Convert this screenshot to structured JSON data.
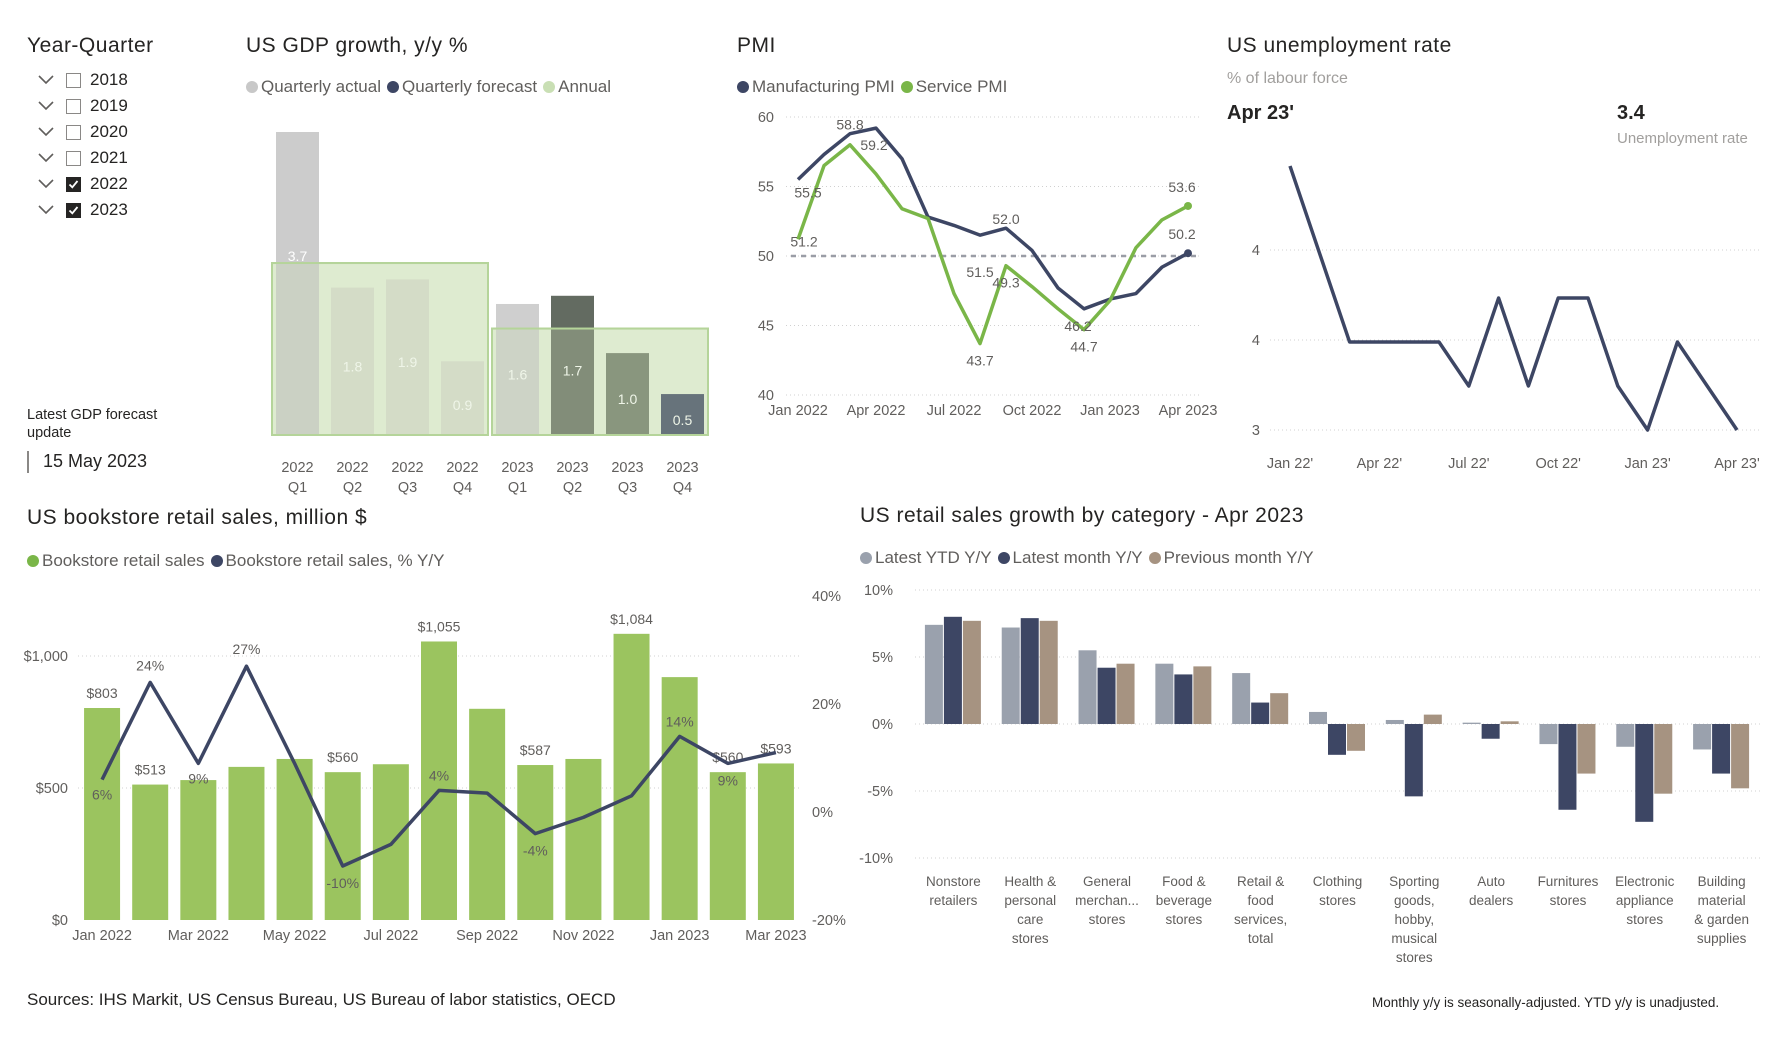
{
  "slicer": {
    "title": "Year-Quarter",
    "items": [
      {
        "label": "2018",
        "checked": false
      },
      {
        "label": "2019",
        "checked": false
      },
      {
        "label": "2020",
        "checked": false
      },
      {
        "label": "2021",
        "checked": false
      },
      {
        "label": "2022",
        "checked": true
      },
      {
        "label": "2023",
        "checked": true
      }
    ],
    "forecast_label": "Latest GDP forecast update",
    "forecast_date": "15 May 2023"
  },
  "gdp": {
    "title": "US GDP growth, y/y %",
    "legend": [
      "Quarterly actual",
      "Quarterly forecast",
      "Annual"
    ],
    "colors": {
      "actual": "#c8c8c8",
      "forecast": "#3d4664",
      "annual": "#c9dfb4"
    },
    "chart_data": {
      "type": "bar",
      "categories": [
        [
          "2022",
          "Q1"
        ],
        [
          "2022",
          "Q2"
        ],
        [
          "2022",
          "Q3"
        ],
        [
          "2022",
          "Q4"
        ],
        [
          "2023",
          "Q1"
        ],
        [
          "2023",
          "Q2"
        ],
        [
          "2023",
          "Q3"
        ],
        [
          "2023",
          "Q4"
        ]
      ],
      "series": [
        {
          "name": "Quarterly actual",
          "values": [
            3.7,
            1.8,
            1.9,
            0.9,
            1.6,
            null,
            null,
            null
          ]
        },
        {
          "name": "Quarterly forecast",
          "values": [
            null,
            null,
            null,
            null,
            null,
            1.7,
            1.0,
            0.5
          ]
        },
        {
          "name": "Annual",
          "values": [
            2.1,
            2.1,
            2.1,
            2.1,
            1.3,
            1.3,
            1.3,
            1.3
          ]
        }
      ],
      "ylim": [
        0,
        4
      ]
    }
  },
  "pmi": {
    "title": "PMI",
    "legend": [
      "Manufacturing PMI",
      "Service PMI"
    ],
    "colors": {
      "manufacturing": "#3d4664",
      "service": "#7ab648"
    },
    "chart_data": {
      "type": "line",
      "x_ticks": [
        "Jan 2022",
        "Apr 2022",
        "Jul 2022",
        "Oct 2022",
        "Jan 2023",
        "Apr 2023"
      ],
      "y_ticks": [
        40,
        45,
        50,
        55,
        60
      ],
      "ylim": [
        40,
        60
      ],
      "reference_line": 50,
      "series": [
        {
          "name": "Manufacturing PMI",
          "values": [
            55.5,
            57.3,
            58.8,
            59.2,
            57.0,
            52.8,
            52.2,
            51.5,
            52.0,
            50.4,
            47.7,
            46.2,
            46.9,
            47.3,
            49.2,
            50.2
          ]
        },
        {
          "name": "Service PMI",
          "values": [
            51.2,
            56.5,
            58.0,
            55.9,
            53.4,
            52.7,
            47.3,
            43.7,
            49.3,
            47.8,
            46.2,
            44.7,
            46.8,
            50.6,
            52.6,
            53.6
          ]
        }
      ],
      "data_labels": [
        "55.5",
        "58.8",
        "59.2",
        "52.0",
        "51.5",
        "46.2",
        "50.2",
        "51.2",
        "43.7",
        "49.3",
        "44.7",
        "53.6"
      ]
    }
  },
  "unemp": {
    "title": "US unemployment rate",
    "subtitle": "% of labour force",
    "period": "Apr 23'",
    "kpi_value": "3.4",
    "kpi_label": "Unemployment rate",
    "colors": {
      "line": "#3d4664"
    },
    "chart_data": {
      "type": "line",
      "x_ticks": [
        "Jan 22'",
        "Apr 22'",
        "Jul 22'",
        "Oct 22'",
        "Jan 23'",
        "Apr 23'"
      ],
      "y_ticks": [
        "4",
        "4",
        "3"
      ],
      "ylim": [
        3.4,
        4.0
      ],
      "values": [
        4.0,
        3.8,
        3.6,
        3.6,
        3.6,
        3.6,
        3.5,
        3.7,
        3.5,
        3.7,
        3.7,
        3.5,
        3.4,
        3.6,
        3.5,
        3.4
      ]
    }
  },
  "bookstore": {
    "title": "US bookstore retail sales, million $",
    "legend": [
      "Bookstore retail sales",
      "Bookstore retail sales, % Y/Y"
    ],
    "colors": {
      "bars": "#9bc45f",
      "line": "#3d4664"
    },
    "chart_data": {
      "type": "bar",
      "x_ticks": [
        "Jan 2022",
        "Mar 2022",
        "May 2022",
        "Jul 2022",
        "Sep 2022",
        "Nov 2022",
        "Jan 2023",
        "Mar 2023"
      ],
      "y_ticks": [
        "$0",
        "$500",
        "$1,000"
      ],
      "y2_ticks": [
        "-20%",
        "0%",
        "20%",
        "40%"
      ],
      "ylim": [
        0,
        1200
      ],
      "y2lim": [
        -20,
        40
      ],
      "series": [
        {
          "name": "Bookstore retail sales",
          "values": [
            803,
            513,
            530,
            580,
            610,
            560,
            590,
            1055,
            800,
            587,
            610,
            1084,
            920,
            560,
            593
          ]
        },
        {
          "name": "Bookstore retail sales, % Y/Y",
          "values": [
            6,
            24,
            9,
            27,
            9,
            -10,
            -6,
            4,
            3.5,
            -4,
            -1,
            3,
            14,
            9,
            11
          ]
        }
      ],
      "bar_labels": [
        "$803",
        "$513",
        "$560",
        "$1,055",
        "$587",
        "$1,084",
        "$560",
        "$593"
      ],
      "line_labels": [
        "6%",
        "24%",
        "9%",
        "27%",
        "-10%",
        "4%",
        "-4%",
        "14%",
        "9%"
      ]
    }
  },
  "retail": {
    "title": "US retail sales growth by category - Apr 2023",
    "legend": [
      "Latest YTD Y/Y",
      "Latest month Y/Y",
      "Previous month Y/Y"
    ],
    "colors": {
      "ytd": "#9aa1ad",
      "month": "#3d4664",
      "prev": "#a69381"
    },
    "chart_data": {
      "type": "bar",
      "categories": [
        [
          "Nonstore",
          "retailers"
        ],
        [
          "Health &",
          "personal",
          "care",
          "stores"
        ],
        [
          "General",
          "merchan...",
          "stores"
        ],
        [
          "Food &",
          "beverage",
          "stores"
        ],
        [
          "Retail &",
          "food",
          "services,",
          "total"
        ],
        [
          "Clothing",
          "stores"
        ],
        [
          "Sporting",
          "goods,",
          "hobby,",
          "musical",
          "stores"
        ],
        [
          "Auto",
          "dealers"
        ],
        [
          "Furnitures",
          "stores"
        ],
        [
          "Electronic",
          "appliance",
          "stores"
        ],
        [
          "Building",
          "material",
          "& garden",
          "supplies"
        ]
      ],
      "y_ticks": [
        "-10%",
        "-5%",
        "0%",
        "5%",
        "10%"
      ],
      "ylim": [
        -10,
        10
      ],
      "series": [
        {
          "name": "Latest YTD Y/Y",
          "values": [
            7.4,
            7.2,
            5.5,
            4.5,
            3.8,
            0.9,
            0.3,
            0.1,
            -1.5,
            -1.7,
            -1.9
          ]
        },
        {
          "name": "Latest month Y/Y",
          "values": [
            8.0,
            7.9,
            4.2,
            3.7,
            1.6,
            -2.3,
            -5.4,
            -1.1,
            -6.4,
            -7.3,
            -3.7
          ]
        },
        {
          "name": "Previous month Y/Y",
          "values": [
            7.7,
            7.7,
            4.5,
            4.3,
            2.3,
            -2.0,
            0.7,
            0.2,
            -3.7,
            -5.2,
            -4.8
          ]
        }
      ]
    }
  },
  "footer": {
    "sources": "Sources: IHS Markit, US Census Bureau, US Bureau of labor statistics, OECD",
    "note": "Monthly y/y is seasonally-adjusted. YTD y/y is unadjusted."
  }
}
